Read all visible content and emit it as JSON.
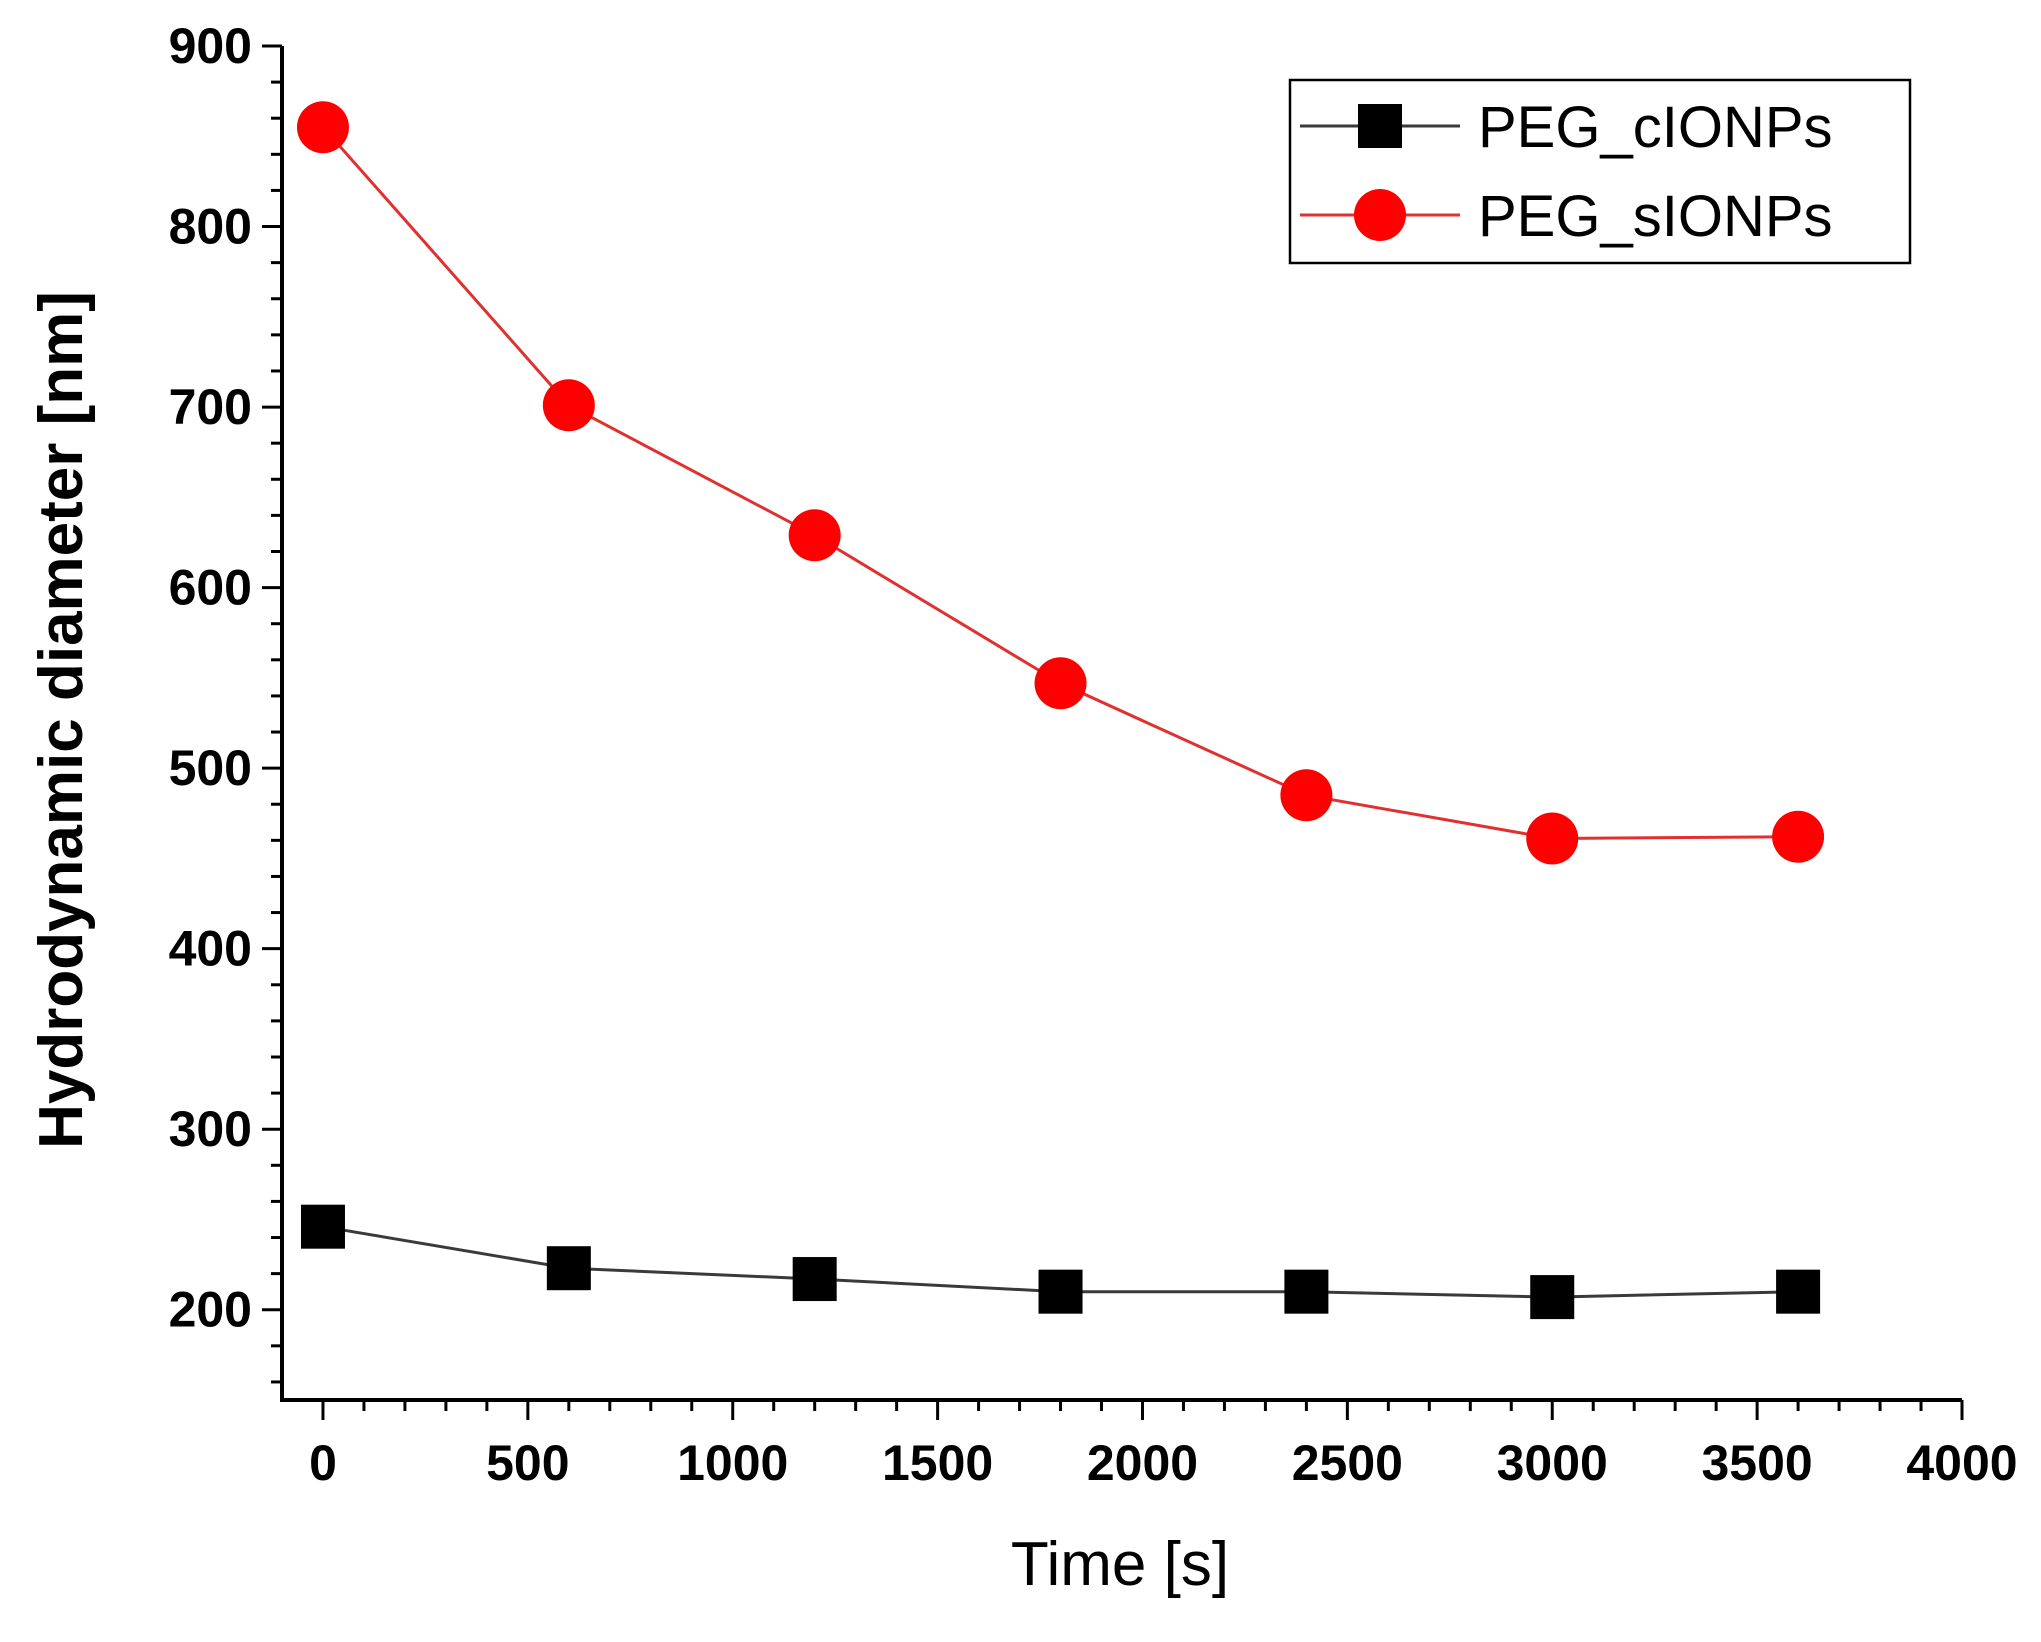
{
  "chart_data": {
    "type": "line",
    "title": "",
    "xlabel": "Time [s]",
    "ylabel": "Hydrodynamic diameter [nm]",
    "xlim": [
      -100,
      4000
    ],
    "ylim": [
      150,
      900
    ],
    "xticks": [
      0,
      500,
      1000,
      1500,
      2000,
      2500,
      3000,
      3500,
      4000
    ],
    "yticks": [
      200,
      300,
      400,
      500,
      600,
      700,
      800,
      900
    ],
    "x": [
      0,
      600,
      1200,
      1800,
      2400,
      3000,
      3600
    ],
    "series": [
      {
        "name": "PEG_cIONPs",
        "marker": "square",
        "color": "#000000",
        "line_color": "#3a3a3a",
        "values": [
          246,
          223,
          217,
          210,
          210,
          207,
          210
        ]
      },
      {
        "name": "PEG_sIONPs",
        "marker": "circle",
        "color": "#ff0000",
        "line_color": "#e03030",
        "values": [
          855,
          701,
          629,
          547,
          485,
          461,
          462
        ]
      }
    ],
    "legend_position": "top-right",
    "grid": false
  }
}
